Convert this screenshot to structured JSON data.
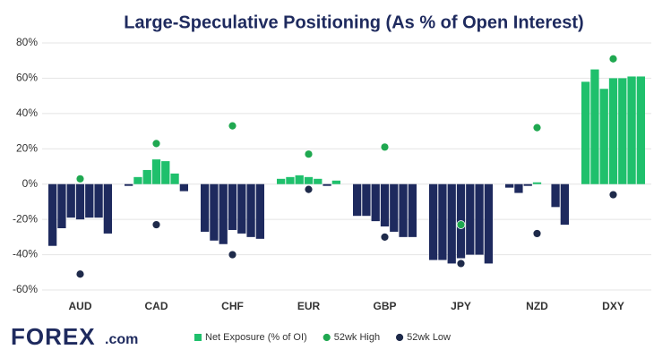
{
  "chart_data": {
    "type": "bar",
    "title": "Large-Speculative Positioning (As % of Open Interest)",
    "categories": [
      "AUD",
      "CAD",
      "CHF",
      "EUR",
      "GBP",
      "JPY",
      "NZD",
      "DXY"
    ],
    "series": [
      {
        "name": "Net Exposure (% of OI)",
        "color": "#1fc06c",
        "negative_color": "#1e2a5e",
        "values": [
          [
            -35,
            -25,
            -19,
            -20,
            -19,
            -19,
            -28
          ],
          [
            -1,
            4,
            8,
            14,
            13,
            6,
            -4
          ],
          [
            -27,
            -32,
            -34,
            -26,
            -28,
            -30,
            -31
          ],
          [
            3,
            4,
            5,
            4,
            3,
            -1,
            2
          ],
          [
            -18,
            -18,
            -21,
            -24,
            -27,
            -30,
            -30
          ],
          [
            -43,
            -43,
            -45,
            -42,
            -40,
            -40,
            -45
          ],
          [
            -2,
            -5,
            -1,
            1,
            0,
            -13,
            -23
          ],
          [
            58,
            65,
            54,
            60,
            60,
            61,
            61
          ]
        ]
      },
      {
        "name": "52wk High",
        "color": "#1fa850",
        "values": [
          3,
          23,
          33,
          17,
          21,
          -23,
          32,
          71
        ]
      },
      {
        "name": "52wk Low",
        "color": "#1e2a4a",
        "values": [
          -51,
          -23,
          -40,
          -3,
          -30,
          -45,
          -28,
          -6
        ]
      }
    ],
    "ylim": [
      -60,
      80
    ],
    "yticks": [
      {
        "value": -60,
        "label": "-60%"
      },
      {
        "value": -40,
        "label": "-40%"
      },
      {
        "value": -20,
        "label": "-20%"
      },
      {
        "value": 0,
        "label": "0%"
      },
      {
        "value": 20,
        "label": "20%"
      },
      {
        "value": 40,
        "label": "40%"
      },
      {
        "value": 60,
        "label": "60%"
      },
      {
        "value": 80,
        "label": "80%"
      }
    ],
    "grid": true,
    "legend": "bottom"
  },
  "logo": {
    "main": "FOREX",
    "suffix": ".com"
  }
}
